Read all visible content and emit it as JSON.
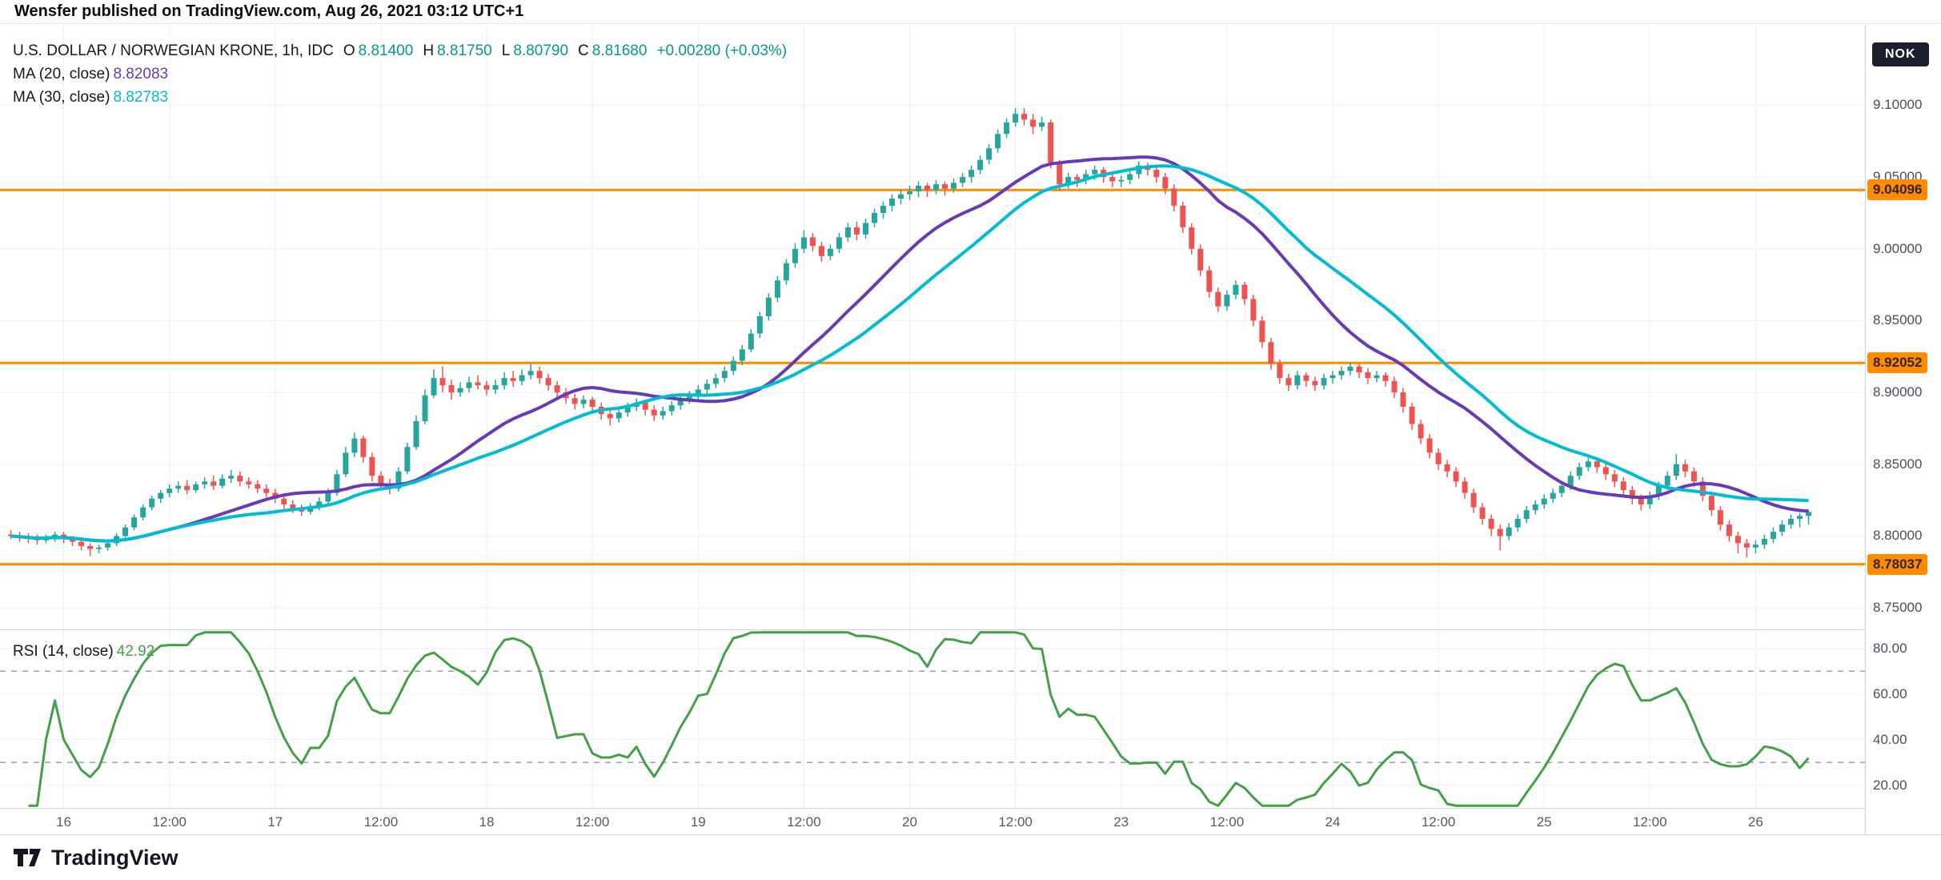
{
  "banner": {
    "text": "Wensfer published on TradingView.com, Aug 26, 2021 03:12 UTC+1"
  },
  "currency_badge": "NOK",
  "legend": {
    "title": "U.S. DOLLAR / NORWEGIAN KRONE, 1h, IDC",
    "ohlc": {
      "o_label": "O",
      "o": "8.81400",
      "h_label": "H",
      "h": "8.81750",
      "l_label": "L",
      "l": "8.80790",
      "c_label": "C",
      "c": "8.81680"
    },
    "change": "+0.00280 (+0.03%)",
    "ma20": {
      "label": "MA (20, close)",
      "value": "8.82083"
    },
    "ma30": {
      "label": "MA (30, close)",
      "value": "8.82783"
    }
  },
  "rsi_legend": {
    "label": "RSI (14, close)",
    "value": "42.92"
  },
  "footer": {
    "brand": "TradingView"
  },
  "colors": {
    "up": "#26a69a",
    "down": "#ef5350",
    "level": "#ff8c00",
    "ma20": "#673ab7",
    "ma30": "#00bcd4",
    "rsi": "#43a047",
    "grid": "#edeff4",
    "band": "#9aa0ab",
    "value_green": "#089981"
  },
  "chart_data": {
    "type": "candlestick",
    "title": "U.S. DOLLAR / NORWEGIAN KRONE, 1h, IDC",
    "symbol": "USD/NOK",
    "interval": "1h",
    "ylim": [
      8.735,
      9.156
    ],
    "price_ticks": [
      {
        "text": "9.10000",
        "value": 9.1
      },
      {
        "text": "9.05000",
        "value": 9.05
      },
      {
        "text": "9.00000",
        "value": 9.0
      },
      {
        "text": "8.95000",
        "value": 8.95
      },
      {
        "text": "8.90000",
        "value": 8.9
      },
      {
        "text": "8.85000",
        "value": 8.85
      },
      {
        "text": "8.80000",
        "value": 8.8
      },
      {
        "text": "8.75000",
        "value": 8.75
      }
    ],
    "levels": [
      {
        "text": "9.04096",
        "value": 9.04096
      },
      {
        "text": "8.92052",
        "value": 8.92052
      },
      {
        "text": "8.78037",
        "value": 8.78037
      }
    ],
    "x_labels": [
      {
        "text": "16",
        "i": 6
      },
      {
        "text": "12:00",
        "i": 18
      },
      {
        "text": "17",
        "i": 30
      },
      {
        "text": "12:00",
        "i": 42
      },
      {
        "text": "18",
        "i": 54
      },
      {
        "text": "12:00",
        "i": 66
      },
      {
        "text": "19",
        "i": 78
      },
      {
        "text": "12:00",
        "i": 90
      },
      {
        "text": "20",
        "i": 102
      },
      {
        "text": "12:00",
        "i": 114
      },
      {
        "text": "23",
        "i": 126
      },
      {
        "text": "12:00",
        "i": 138
      },
      {
        "text": "24",
        "i": 150
      },
      {
        "text": "12:00",
        "i": 162
      },
      {
        "text": "25",
        "i": 174
      },
      {
        "text": "12:00",
        "i": 186
      },
      {
        "text": "26",
        "i": 198
      }
    ],
    "overlays": [
      {
        "type": "sma",
        "period": 20,
        "name": "MA (20, close)",
        "last": 8.82083
      },
      {
        "type": "sma",
        "period": 30,
        "name": "MA (30, close)",
        "last": 8.82783
      }
    ],
    "rsi": {
      "type": "line",
      "period": 14,
      "last": 42.92,
      "ylim": [
        10,
        88
      ],
      "ticks": [
        {
          "text": "80.00",
          "value": 80
        },
        {
          "text": "60.00",
          "value": 60
        },
        {
          "text": "40.00",
          "value": 40
        },
        {
          "text": "20.00",
          "value": 20
        }
      ],
      "bands": [
        70,
        30
      ]
    },
    "candles": [
      [
        8.801,
        8.804,
        8.798,
        8.8
      ],
      [
        8.8,
        8.803,
        8.796,
        8.799
      ],
      [
        8.799,
        8.802,
        8.795,
        8.798
      ],
      [
        8.798,
        8.801,
        8.794,
        8.797
      ],
      [
        8.797,
        8.801,
        8.795,
        8.799
      ],
      [
        8.799,
        8.803,
        8.796,
        8.801
      ],
      [
        8.801,
        8.803,
        8.795,
        8.798
      ],
      [
        8.798,
        8.8,
        8.793,
        8.796
      ],
      [
        8.796,
        8.798,
        8.79,
        8.793
      ],
      [
        8.793,
        8.795,
        8.786,
        8.791
      ],
      [
        8.791,
        8.794,
        8.788,
        8.792
      ],
      [
        8.792,
        8.797,
        8.79,
        8.795
      ],
      [
        8.795,
        8.802,
        8.793,
        8.8
      ],
      [
        8.8,
        8.808,
        8.798,
        8.806
      ],
      [
        8.806,
        8.815,
        8.804,
        8.813
      ],
      [
        8.813,
        8.822,
        8.811,
        8.82
      ],
      [
        8.82,
        8.828,
        8.818,
        8.826
      ],
      [
        8.826,
        8.832,
        8.823,
        8.83
      ],
      [
        8.83,
        8.836,
        8.827,
        8.833
      ],
      [
        8.833,
        8.838,
        8.83,
        8.835
      ],
      [
        8.835,
        8.839,
        8.829,
        8.832
      ],
      [
        8.832,
        8.838,
        8.83,
        8.836
      ],
      [
        8.836,
        8.841,
        8.833,
        8.838
      ],
      [
        8.838,
        8.842,
        8.832,
        8.835
      ],
      [
        8.835,
        8.843,
        8.833,
        8.84
      ],
      [
        8.84,
        8.846,
        8.837,
        8.842
      ],
      [
        8.842,
        8.845,
        8.835,
        8.838
      ],
      [
        8.838,
        8.841,
        8.833,
        8.836
      ],
      [
        8.836,
        8.839,
        8.83,
        8.833
      ],
      [
        8.833,
        8.836,
        8.827,
        8.83
      ],
      [
        8.83,
        8.833,
        8.823,
        8.826
      ],
      [
        8.826,
        8.829,
        8.819,
        8.822
      ],
      [
        8.822,
        8.825,
        8.816,
        8.819
      ],
      [
        8.819,
        8.822,
        8.814,
        8.817
      ],
      [
        8.817,
        8.823,
        8.815,
        8.82
      ],
      [
        8.82,
        8.827,
        8.818,
        8.824
      ],
      [
        8.824,
        8.833,
        8.822,
        8.83
      ],
      [
        8.83,
        8.846,
        8.828,
        8.843
      ],
      [
        8.843,
        8.862,
        8.841,
        8.858
      ],
      [
        8.858,
        8.872,
        8.855,
        8.868
      ],
      [
        8.868,
        8.87,
        8.851,
        8.855
      ],
      [
        8.855,
        8.858,
        8.838,
        8.842
      ],
      [
        8.842,
        8.845,
        8.832,
        8.836
      ],
      [
        8.836,
        8.84,
        8.829,
        8.833
      ],
      [
        8.833,
        8.848,
        8.831,
        8.845
      ],
      [
        8.845,
        8.865,
        8.843,
        8.862
      ],
      [
        8.862,
        8.884,
        8.86,
        8.88
      ],
      [
        8.88,
        8.902,
        8.878,
        8.898
      ],
      [
        8.898,
        8.916,
        8.896,
        8.91
      ],
      [
        8.91,
        8.918,
        8.9,
        8.905
      ],
      [
        8.905,
        8.909,
        8.895,
        8.9
      ],
      [
        8.9,
        8.907,
        8.897,
        8.903
      ],
      [
        8.903,
        8.911,
        8.9,
        8.907
      ],
      [
        8.907,
        8.912,
        8.902,
        8.905
      ],
      [
        8.905,
        8.908,
        8.898,
        8.902
      ],
      [
        8.902,
        8.909,
        8.899,
        8.905
      ],
      [
        8.905,
        8.914,
        8.902,
        8.91
      ],
      [
        8.91,
        8.915,
        8.904,
        8.908
      ],
      [
        8.908,
        8.916,
        8.905,
        8.912
      ],
      [
        8.912,
        8.92,
        8.909,
        8.915
      ],
      [
        8.915,
        8.918,
        8.906,
        8.91
      ],
      [
        8.91,
        8.913,
        8.901,
        8.905
      ],
      [
        8.905,
        8.908,
        8.896,
        8.9
      ],
      [
        8.9,
        8.903,
        8.892,
        8.896
      ],
      [
        8.896,
        8.899,
        8.888,
        8.892
      ],
      [
        8.892,
        8.898,
        8.889,
        8.895
      ],
      [
        8.895,
        8.897,
        8.886,
        8.89
      ],
      [
        8.89,
        8.893,
        8.881,
        8.885
      ],
      [
        8.885,
        8.888,
        8.877,
        8.882
      ],
      [
        8.882,
        8.889,
        8.879,
        8.886
      ],
      [
        8.886,
        8.893,
        8.883,
        8.89
      ],
      [
        8.89,
        8.896,
        8.887,
        8.893
      ],
      [
        8.893,
        8.895,
        8.884,
        8.888
      ],
      [
        8.888,
        8.891,
        8.88,
        8.884
      ],
      [
        8.884,
        8.89,
        8.881,
        8.887
      ],
      [
        8.887,
        8.894,
        8.884,
        8.891
      ],
      [
        8.891,
        8.898,
        8.888,
        8.895
      ],
      [
        8.895,
        8.901,
        8.892,
        8.898
      ],
      [
        8.898,
        8.905,
        8.895,
        8.902
      ],
      [
        8.902,
        8.909,
        8.899,
        8.906
      ],
      [
        8.906,
        8.913,
        8.903,
        8.91
      ],
      [
        8.91,
        8.918,
        8.907,
        8.915
      ],
      [
        8.915,
        8.925,
        8.912,
        8.922
      ],
      [
        8.922,
        8.933,
        8.919,
        8.93
      ],
      [
        8.93,
        8.944,
        8.928,
        8.941
      ],
      [
        8.941,
        8.956,
        8.938,
        8.953
      ],
      [
        8.953,
        8.969,
        8.95,
        8.966
      ],
      [
        8.966,
        8.981,
        8.963,
        8.978
      ],
      [
        8.978,
        8.993,
        8.975,
        8.99
      ],
      [
        8.99,
        9.004,
        8.987,
        9.0
      ],
      [
        9.0,
        9.013,
        8.997,
        9.008
      ],
      [
        9.008,
        9.011,
        8.998,
        9.002
      ],
      [
        9.002,
        9.005,
        8.991,
        8.995
      ],
      [
        8.995,
        9.003,
        8.992,
        9.0
      ],
      [
        9.0,
        9.011,
        8.997,
        9.008
      ],
      [
        9.008,
        9.018,
        9.005,
        9.015
      ],
      [
        9.015,
        9.019,
        9.006,
        9.01
      ],
      [
        9.01,
        9.021,
        9.007,
        9.018
      ],
      [
        9.018,
        9.028,
        9.015,
        9.025
      ],
      [
        9.025,
        9.033,
        9.021,
        9.03
      ],
      [
        9.03,
        9.038,
        9.026,
        9.035
      ],
      [
        9.035,
        9.041,
        9.031,
        9.038
      ],
      [
        9.038,
        9.044,
        9.034,
        9.04
      ],
      [
        9.04,
        9.047,
        9.036,
        9.044
      ],
      [
        9.044,
        9.046,
        9.036,
        9.041
      ],
      [
        9.041,
        9.048,
        9.038,
        9.045
      ],
      [
        9.045,
        9.047,
        9.037,
        9.042
      ],
      [
        9.042,
        9.049,
        9.039,
        9.046
      ],
      [
        9.046,
        9.053,
        9.043,
        9.05
      ],
      [
        9.05,
        9.058,
        9.046,
        9.055
      ],
      [
        9.055,
        9.065,
        9.052,
        9.062
      ],
      [
        9.062,
        9.073,
        9.059,
        9.07
      ],
      [
        9.07,
        9.083,
        9.067,
        9.08
      ],
      [
        9.08,
        9.091,
        9.077,
        9.088
      ],
      [
        9.088,
        9.098,
        9.085,
        9.094
      ],
      [
        9.094,
        9.098,
        9.086,
        9.09
      ],
      [
        9.09,
        9.094,
        9.08,
        9.085
      ],
      [
        9.085,
        9.092,
        9.082,
        9.088
      ],
      [
        9.088,
        9.09,
        9.056,
        9.06
      ],
      [
        9.06,
        9.062,
        9.04,
        9.045
      ],
      [
        9.045,
        9.053,
        9.042,
        9.05
      ],
      [
        9.05,
        9.052,
        9.043,
        9.048
      ],
      [
        9.048,
        9.055,
        9.045,
        9.052
      ],
      [
        9.052,
        9.058,
        9.048,
        9.055
      ],
      [
        9.055,
        9.057,
        9.046,
        9.05
      ],
      [
        9.05,
        9.052,
        9.043,
        9.047
      ],
      [
        9.047,
        9.051,
        9.043,
        9.048
      ],
      [
        9.048,
        9.055,
        9.045,
        9.052
      ],
      [
        9.052,
        9.061,
        9.049,
        9.058
      ],
      [
        9.058,
        9.06,
        9.051,
        9.055
      ],
      [
        9.055,
        9.058,
        9.046,
        9.05
      ],
      [
        9.05,
        9.053,
        9.038,
        9.042
      ],
      [
        9.042,
        9.045,
        9.026,
        9.03
      ],
      [
        9.03,
        9.033,
        9.011,
        9.015
      ],
      [
        9.015,
        9.018,
        8.996,
        9.0
      ],
      [
        9.0,
        9.003,
        8.981,
        8.985
      ],
      [
        8.985,
        8.988,
        8.966,
        8.97
      ],
      [
        8.97,
        8.973,
        8.956,
        8.96
      ],
      [
        8.96,
        8.971,
        8.957,
        8.968
      ],
      [
        8.968,
        8.978,
        8.965,
        8.975
      ],
      [
        8.975,
        8.977,
        8.961,
        8.965
      ],
      [
        8.965,
        8.968,
        8.946,
        8.95
      ],
      [
        8.95,
        8.953,
        8.931,
        8.935
      ],
      [
        8.935,
        8.938,
        8.916,
        8.92
      ],
      [
        8.92,
        8.923,
        8.906,
        8.91
      ],
      [
        8.91,
        8.913,
        8.901,
        8.905
      ],
      [
        8.905,
        8.915,
        8.902,
        8.912
      ],
      [
        8.912,
        8.914,
        8.904,
        8.908
      ],
      [
        8.908,
        8.911,
        8.901,
        8.905
      ],
      [
        8.905,
        8.913,
        8.902,
        8.91
      ],
      [
        8.91,
        8.915,
        8.906,
        8.912
      ],
      [
        8.912,
        8.918,
        8.909,
        8.915
      ],
      [
        8.915,
        8.921,
        8.912,
        8.918
      ],
      [
        8.918,
        8.92,
        8.91,
        8.914
      ],
      [
        8.914,
        8.917,
        8.906,
        8.91
      ],
      [
        8.91,
        8.915,
        8.907,
        8.912
      ],
      [
        8.912,
        8.914,
        8.904,
        8.908
      ],
      [
        8.908,
        8.911,
        8.896,
        8.9
      ],
      [
        8.9,
        8.903,
        8.886,
        8.89
      ],
      [
        8.89,
        8.893,
        8.874,
        8.878
      ],
      [
        8.878,
        8.881,
        8.864,
        8.868
      ],
      [
        8.868,
        8.871,
        8.854,
        8.858
      ],
      [
        8.858,
        8.861,
        8.846,
        8.85
      ],
      [
        8.85,
        8.853,
        8.841,
        8.845
      ],
      [
        8.845,
        8.848,
        8.834,
        8.838
      ],
      [
        8.838,
        8.841,
        8.826,
        8.83
      ],
      [
        8.83,
        8.833,
        8.816,
        8.82
      ],
      [
        8.82,
        8.823,
        8.808,
        8.812
      ],
      [
        8.812,
        8.815,
        8.8,
        8.805
      ],
      [
        8.805,
        8.808,
        8.79,
        8.8
      ],
      [
        8.8,
        8.809,
        8.797,
        8.806
      ],
      [
        8.806,
        8.815,
        8.803,
        8.812
      ],
      [
        8.812,
        8.821,
        8.809,
        8.818
      ],
      [
        8.818,
        8.825,
        8.815,
        8.822
      ],
      [
        8.822,
        8.829,
        8.819,
        8.826
      ],
      [
        8.826,
        8.833,
        8.823,
        8.83
      ],
      [
        8.83,
        8.838,
        8.827,
        8.835
      ],
      [
        8.835,
        8.845,
        8.832,
        8.842
      ],
      [
        8.842,
        8.851,
        8.839,
        8.848
      ],
      [
        8.848,
        8.856,
        8.845,
        8.852
      ],
      [
        8.852,
        8.854,
        8.844,
        8.848
      ],
      [
        8.848,
        8.851,
        8.839,
        8.843
      ],
      [
        8.843,
        8.846,
        8.834,
        8.838
      ],
      [
        8.838,
        8.841,
        8.828,
        8.832
      ],
      [
        8.832,
        8.835,
        8.822,
        8.826
      ],
      [
        8.826,
        8.829,
        8.818,
        8.822
      ],
      [
        8.822,
        8.831,
        8.819,
        8.828
      ],
      [
        8.828,
        8.838,
        8.825,
        8.835
      ],
      [
        8.835,
        8.845,
        8.832,
        8.842
      ],
      [
        8.842,
        8.857,
        8.839,
        8.85
      ],
      [
        8.85,
        8.853,
        8.841,
        8.845
      ],
      [
        8.845,
        8.848,
        8.834,
        8.838
      ],
      [
        8.838,
        8.841,
        8.824,
        8.828
      ],
      [
        8.828,
        8.831,
        8.814,
        8.818
      ],
      [
        8.818,
        8.821,
        8.804,
        8.808
      ],
      [
        8.808,
        8.811,
        8.796,
        8.8
      ],
      [
        8.8,
        8.803,
        8.788,
        8.795
      ],
      [
        8.795,
        8.798,
        8.785,
        8.792
      ],
      [
        8.792,
        8.797,
        8.788,
        8.794
      ],
      [
        8.794,
        8.801,
        8.791,
        8.798
      ],
      [
        8.798,
        8.806,
        8.795,
        8.803
      ],
      [
        8.803,
        8.811,
        8.8,
        8.808
      ],
      [
        8.808,
        8.815,
        8.805,
        8.812
      ],
      [
        8.812,
        8.816,
        8.806,
        8.814
      ],
      [
        8.814,
        8.8175,
        8.8079,
        8.8168
      ]
    ]
  }
}
